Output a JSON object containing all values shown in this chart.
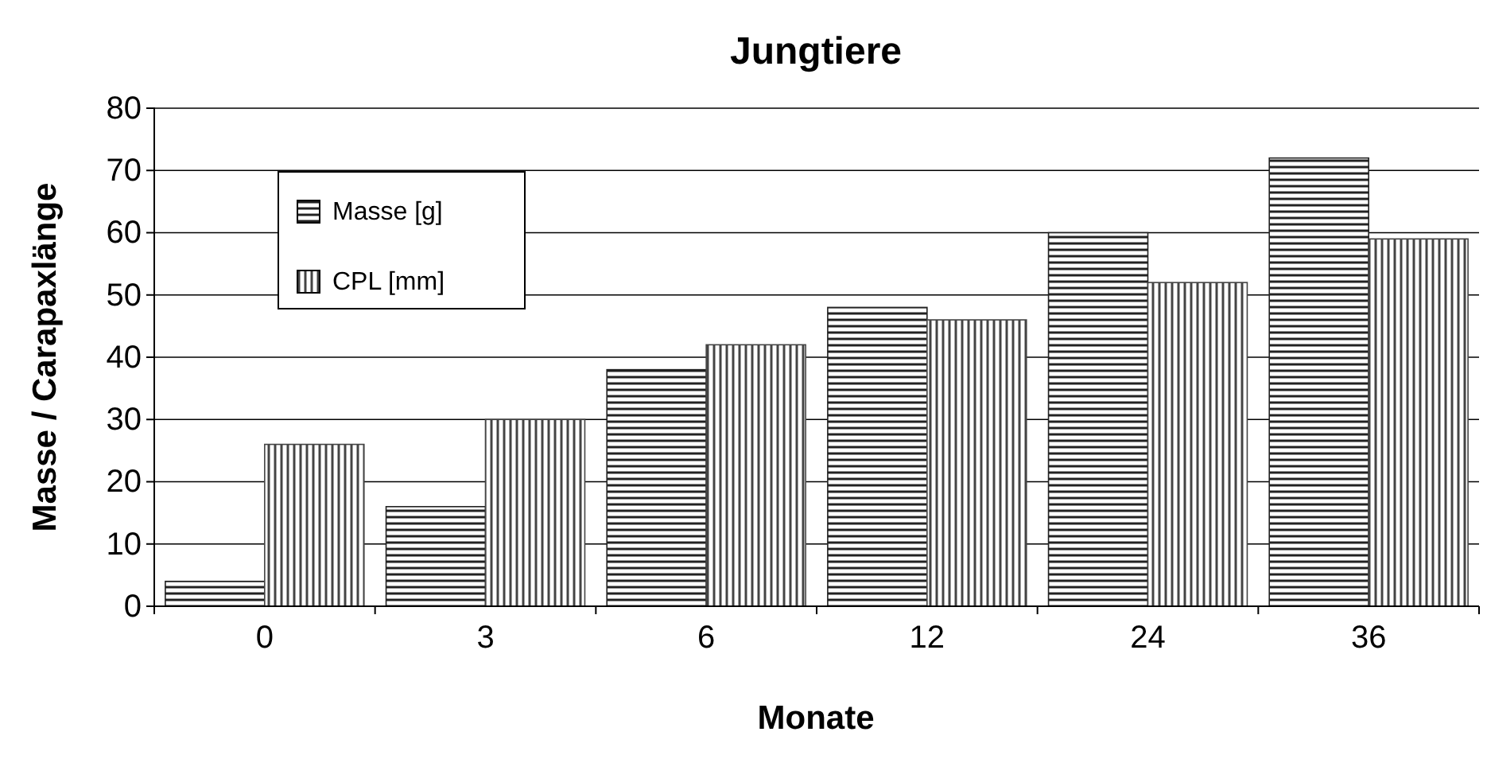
{
  "chart_data": {
    "type": "bar",
    "title": "Jungtiere",
    "xlabel": "Monate",
    "ylabel": "Masse / Carapaxlänge",
    "categories": [
      "0",
      "3",
      "6",
      "12",
      "24",
      "36"
    ],
    "series": [
      {
        "name": "Masse [g]",
        "color": "#222222",
        "values": [
          4,
          16,
          38,
          48,
          60,
          72
        ]
      },
      {
        "name": "CPL [mm]",
        "color": "#444444",
        "values": [
          26,
          30,
          42,
          46,
          52,
          59
        ]
      }
    ],
    "ylim": [
      0,
      80
    ],
    "yticks": [
      0,
      10,
      20,
      30,
      40,
      50,
      60,
      70,
      80
    ],
    "grid": "y",
    "legend": "top left"
  }
}
